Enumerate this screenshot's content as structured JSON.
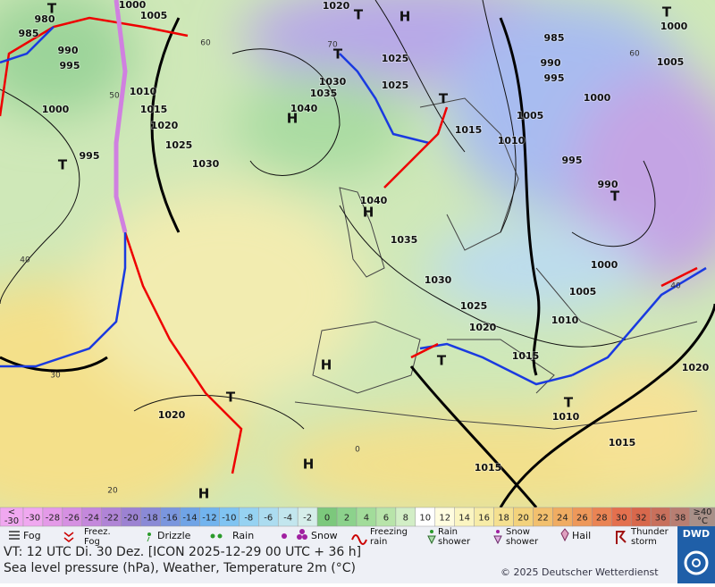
{
  "map": {
    "isobar_labels": [
      "1000",
      "1005",
      "980",
      "985",
      "990",
      "995",
      "1000",
      "995",
      "1010",
      "1015",
      "1020",
      "1025",
      "1030",
      "1040",
      "1035",
      "1030",
      "1025",
      "1025",
      "1020",
      "1015",
      "1010",
      "1005",
      "1000",
      "995",
      "990",
      "985",
      "995",
      "990",
      "1000",
      "1005",
      "1010",
      "1040",
      "1035",
      "1030",
      "1025",
      "1020",
      "1015",
      "1010",
      "1015",
      "1015",
      "1020",
      "1020",
      "1000",
      "1005"
    ],
    "grid_labels": [
      "60",
      "50",
      "40",
      "30",
      "20",
      "0",
      "60",
      "40",
      "70"
    ],
    "centers": [
      "T",
      "H",
      "T",
      "T",
      "T",
      "H",
      "T",
      "T",
      "H",
      "T",
      "T",
      "H",
      "T",
      "T",
      "H",
      "H"
    ],
    "scale": {
      "low": [
        "<",
        "-30"
      ],
      "steps": [
        -30,
        -28,
        -26,
        -24,
        -22,
        -20,
        -18,
        -16,
        -14,
        -12,
        -10,
        -8,
        -6,
        -4,
        -2,
        0,
        2,
        4,
        6,
        8,
        10,
        12,
        14,
        16,
        18,
        20,
        22,
        24,
        26,
        28,
        30,
        32,
        36,
        38
      ],
      "high": [
        "≥40",
        "°C"
      ],
      "colors": [
        "#f0a8f0",
        "#e49ae8",
        "#d690e2",
        "#c488dc",
        "#b084d6",
        "#9c82d2",
        "#8a8ad6",
        "#7a96de",
        "#70a4e6",
        "#72b4ee",
        "#80c4f2",
        "#96d2f2",
        "#acdcf0",
        "#c2e6ee",
        "#d6eeea",
        "#7cc87c",
        "#8cd28c",
        "#a2dc9a",
        "#b8e4aa",
        "#d2eec6",
        "#ffffff",
        "#fffce0",
        "#fbf5c2",
        "#f7eca8",
        "#f5e090",
        "#f3d27c",
        "#f2c06e",
        "#f0ac62",
        "#ee985a",
        "#ea8454",
        "#e4704e",
        "#d8684c",
        "#c8705c",
        "#b87e72"
      ]
    },
    "legend": [
      [
        "Fog"
      ],
      [
        "Freez.",
        "Fog"
      ],
      [
        "Drizzle"
      ],
      [
        "Rain"
      ],
      [
        "Snow"
      ],
      [
        "Freezing",
        "rain"
      ],
      [
        "Rain",
        "shower"
      ],
      [
        "Snow",
        "shower"
      ],
      [
        "Hail"
      ],
      [
        "Thunder",
        "storm"
      ]
    ],
    "logo": "DWD",
    "footer": {
      "valid": "VT: 12 UTC Di.  30 Dez. [ICON 2025-12-29  00 UTC + 36 h]",
      "caption": "Sea level pressure (hPa), Weather, Temperature 2m (°C)",
      "copyright": "© 2025 Deutscher Wetterdienst"
    }
  }
}
